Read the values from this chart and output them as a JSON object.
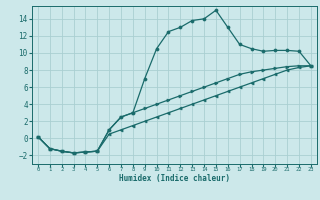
{
  "xlabel": "Humidex (Indice chaleur)",
  "bg_color": "#cce8ea",
  "grid_color": "#aacfd2",
  "line_color": "#1a6b6b",
  "xlim": [
    -0.5,
    23.5
  ],
  "ylim": [
    -3.0,
    15.5
  ],
  "xticks": [
    0,
    1,
    2,
    3,
    4,
    5,
    6,
    7,
    8,
    9,
    10,
    11,
    12,
    13,
    14,
    15,
    16,
    17,
    18,
    19,
    20,
    21,
    22,
    23
  ],
  "yticks": [
    -2,
    0,
    2,
    4,
    6,
    8,
    10,
    12,
    14
  ],
  "line1_x": [
    0,
    1,
    2,
    3,
    4,
    5,
    6,
    7,
    8,
    9,
    10,
    11,
    12,
    13,
    14,
    15,
    16,
    17,
    18,
    19,
    20,
    21,
    22,
    23
  ],
  "line1_y": [
    0.2,
    -1.2,
    -1.5,
    -1.7,
    -1.6,
    -1.5,
    1.0,
    2.5,
    3.0,
    7.0,
    10.5,
    12.5,
    13.0,
    13.8,
    14.0,
    15.0,
    13.0,
    11.0,
    10.5,
    10.2,
    10.3,
    10.3,
    10.2,
    8.5
  ],
  "line2_x": [
    0,
    1,
    2,
    3,
    4,
    5,
    6,
    7,
    8,
    9,
    10,
    11,
    12,
    13,
    14,
    15,
    16,
    17,
    18,
    19,
    20,
    21,
    22,
    23
  ],
  "line2_y": [
    0.2,
    -1.2,
    -1.5,
    -1.7,
    -1.6,
    -1.5,
    1.0,
    2.5,
    3.0,
    3.5,
    4.0,
    4.5,
    5.0,
    5.5,
    6.0,
    6.5,
    7.0,
    7.5,
    7.8,
    8.0,
    8.2,
    8.4,
    8.5,
    8.5
  ],
  "line3_x": [
    0,
    1,
    2,
    3,
    4,
    5,
    6,
    7,
    8,
    9,
    10,
    11,
    12,
    13,
    14,
    15,
    16,
    17,
    18,
    19,
    20,
    21,
    22,
    23
  ],
  "line3_y": [
    0.2,
    -1.2,
    -1.5,
    -1.7,
    -1.6,
    -1.5,
    0.5,
    1.0,
    1.5,
    2.0,
    2.5,
    3.0,
    3.5,
    4.0,
    4.5,
    5.0,
    5.5,
    6.0,
    6.5,
    7.0,
    7.5,
    8.0,
    8.3,
    8.5
  ]
}
